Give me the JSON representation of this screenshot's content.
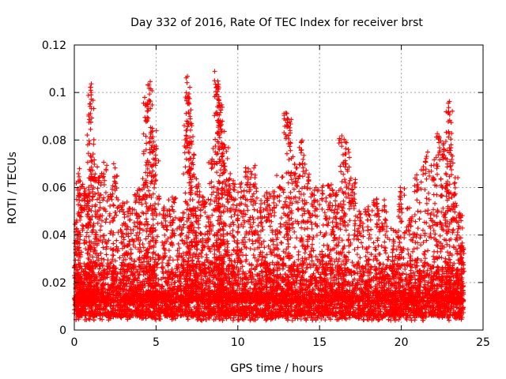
{
  "chart_data": {
    "type": "scatter",
    "title": "Day 332 of 2016, Rate Of TEC Index for receiver brst",
    "xlabel": "GPS time / hours",
    "ylabel": "ROTI / TECUs",
    "xlim": [
      0,
      25
    ],
    "ylim": [
      0,
      0.12
    ],
    "xticks": [
      0,
      5,
      10,
      15,
      20,
      25
    ],
    "xtick_labels": [
      "0",
      "5",
      "10",
      "15",
      "20",
      "25"
    ],
    "yticks": [
      0,
      0.02,
      0.04,
      0.06,
      0.08,
      0.1,
      0.12
    ],
    "ytick_labels": [
      "0",
      "0.02",
      "0.04",
      "0.06",
      "0.08",
      "0.1",
      "0.12"
    ],
    "grid": true,
    "marker": "plus",
    "color": "#ff0000",
    "series": [
      {
        "x": [
          0.1,
          0.3,
          0.5,
          0.8,
          1.0,
          1.05,
          1.2,
          1.5,
          1.8,
          2.2,
          2.5,
          3.0,
          3.4,
          3.8,
          4.2,
          4.45,
          4.6,
          4.8,
          5.0,
          5.5,
          6.0,
          6.5,
          6.9,
          7.0,
          7.1,
          7.3,
          7.6,
          8.0,
          8.4,
          8.7,
          8.8,
          8.9,
          9.0,
          9.2,
          9.5,
          9.8,
          10.2,
          10.6,
          11.0,
          11.4,
          11.8,
          12.2,
          12.6,
          13.0,
          13.15,
          13.5,
          13.9,
          14.3,
          14.7,
          15.2,
          15.6,
          16.0,
          16.4,
          16.6,
          17.0,
          17.5,
          18.0,
          18.5,
          19.0,
          19.5,
          20.0,
          20.5,
          21.0,
          21.5,
          22.0,
          22.3,
          22.6,
          22.9,
          23.0,
          23.3,
          23.6,
          23.8
        ],
        "y": [
          0.045,
          0.068,
          0.062,
          0.058,
          0.098,
          0.104,
          0.072,
          0.066,
          0.071,
          0.058,
          0.07,
          0.055,
          0.052,
          0.06,
          0.066,
          0.098,
          0.105,
          0.084,
          0.078,
          0.052,
          0.056,
          0.05,
          0.108,
          0.1,
          0.09,
          0.075,
          0.062,
          0.058,
          0.072,
          0.11,
          0.105,
          0.095,
          0.088,
          0.078,
          0.066,
          0.064,
          0.062,
          0.071,
          0.07,
          0.055,
          0.058,
          0.06,
          0.066,
          0.092,
          0.09,
          0.07,
          0.08,
          0.068,
          0.06,
          0.062,
          0.062,
          0.058,
          0.082,
          0.08,
          0.064,
          0.05,
          0.052,
          0.056,
          0.055,
          0.045,
          0.06,
          0.052,
          0.068,
          0.075,
          0.072,
          0.085,
          0.08,
          0.097,
          0.08,
          0.065,
          0.05,
          0.036
        ]
      }
    ]
  }
}
